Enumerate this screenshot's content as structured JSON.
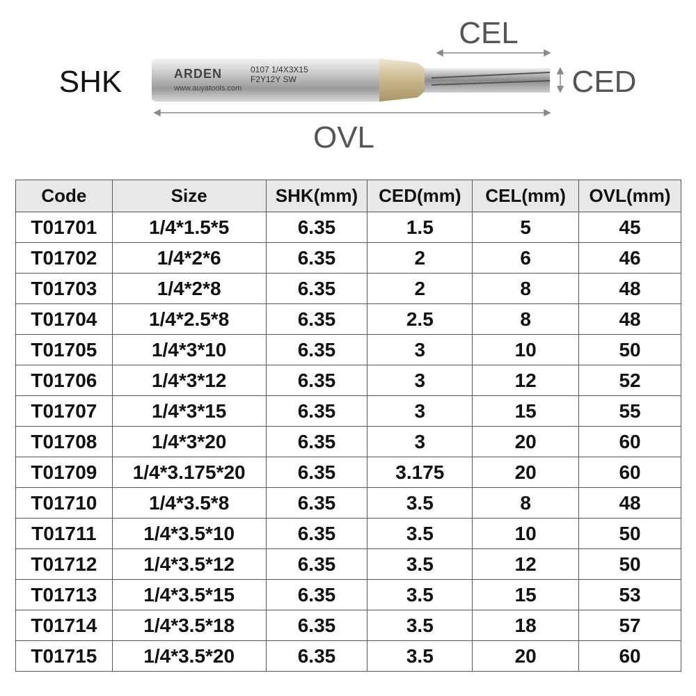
{
  "diagram": {
    "shk": "SHK",
    "cel": "CEL",
    "ced": "CED",
    "ovl": "OVL",
    "brand": "ARDEN",
    "engraving_1": "0107 1/4X3X15",
    "engraving_2": "F2Y12Y SW",
    "website": "www.auyatools.com"
  },
  "table": {
    "header": [
      "Code",
      "Size",
      "SHK(mm)",
      "CED(mm)",
      "CEL(mm)",
      "OVL(mm)"
    ],
    "rows": [
      [
        "T01701",
        "1/4*1.5*5",
        "6.35",
        "1.5",
        "5",
        "45"
      ],
      [
        "T01702",
        "1/4*2*6",
        "6.35",
        "2",
        "6",
        "46"
      ],
      [
        "T01703",
        "1/4*2*8",
        "6.35",
        "2",
        "8",
        "48"
      ],
      [
        "T01704",
        "1/4*2.5*8",
        "6.35",
        "2.5",
        "8",
        "48"
      ],
      [
        "T01705",
        "1/4*3*10",
        "6.35",
        "3",
        "10",
        "50"
      ],
      [
        "T01706",
        "1/4*3*12",
        "6.35",
        "3",
        "12",
        "52"
      ],
      [
        "T01707",
        "1/4*3*15",
        "6.35",
        "3",
        "15",
        "55"
      ],
      [
        "T01708",
        "1/4*3*20",
        "6.35",
        "3",
        "20",
        "60"
      ],
      [
        "T01709",
        "1/4*3.175*20",
        "6.35",
        "3.175",
        "20",
        "60"
      ],
      [
        "T01710",
        "1/4*3.5*8",
        "6.35",
        "3.5",
        "8",
        "48"
      ],
      [
        "T01711",
        "1/4*3.5*10",
        "6.35",
        "3.5",
        "10",
        "50"
      ],
      [
        "T01712",
        "1/4*3.5*12",
        "6.35",
        "3.5",
        "12",
        "50"
      ],
      [
        "T01713",
        "1/4*3.5*15",
        "6.35",
        "3.5",
        "15",
        "53"
      ],
      [
        "T01714",
        "1/4*3.5*18",
        "6.35",
        "3.5",
        "18",
        "57"
      ],
      [
        "T01715",
        "1/4*3.5*20",
        "6.35",
        "3.5",
        "20",
        "60"
      ]
    ]
  }
}
